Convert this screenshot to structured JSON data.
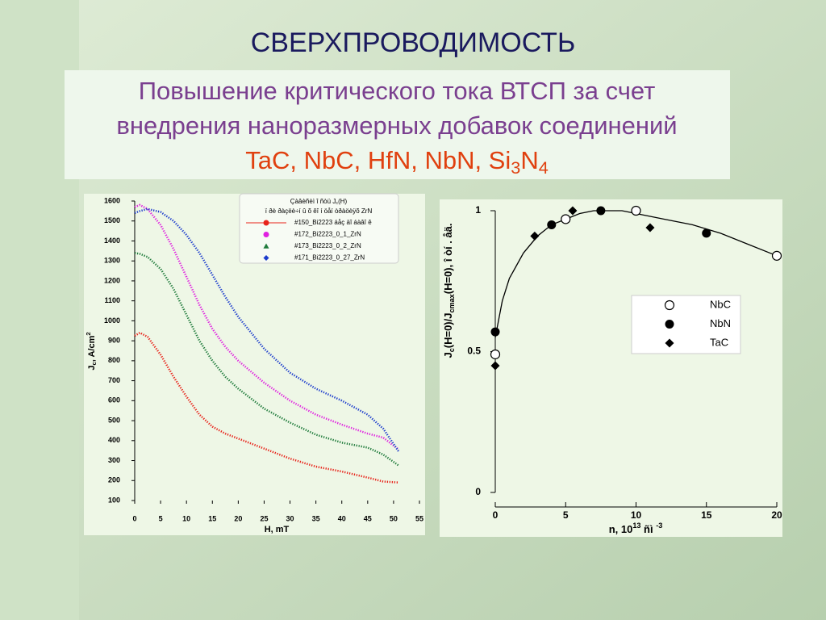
{
  "header": {
    "title": "СВЕРХПРОВОДИМОСТЬ",
    "lines": [
      "Повышение критического тока ВТСП за счет",
      "внедрения  наноразмерных добавок соединений"
    ],
    "formula": [
      "TaC, NbC, HfN, NbN, Si",
      "3",
      "N",
      "4"
    ]
  },
  "chart_data": [
    {
      "type": "line",
      "xlabel": "H, mT",
      "ylabel": [
        "J",
        "c",
        ", A/cm",
        "2"
      ],
      "legend_title": [
        "Çàâèñèì î ñòü J",
        "c",
        "(H)"
      ],
      "legend_subtitle": "ï ðè ðàçëè÷í û õ êî í öåí òðàöèÿõ ZrN",
      "x": [
        0,
        1,
        2.5,
        5,
        7.5,
        10,
        12.5,
        15,
        17.5,
        20,
        25,
        30,
        35,
        40,
        45,
        48,
        51
      ],
      "xlim": [
        0,
        55
      ],
      "xticks": [
        0,
        5,
        10,
        15,
        20,
        25,
        30,
        35,
        40,
        45,
        50,
        55
      ],
      "ylim": [
        100,
        1600
      ],
      "yticks": [
        100,
        200,
        300,
        400,
        500,
        600,
        700,
        800,
        900,
        1000,
        1100,
        1200,
        1300,
        1400,
        1500,
        1600
      ],
      "series": [
        {
          "name": "#150_Bi2223  áåç äî áàâî ê",
          "color": "#e8231a",
          "marker": "circle",
          "values": [
            925,
            940,
            920,
            830,
            720,
            620,
            530,
            470,
            435,
            410,
            360,
            310,
            270,
            245,
            215,
            195,
            190
          ]
        },
        {
          "name": "#172_Bi2223_0_1_ZrN",
          "color": "#e020e0",
          "marker": "circle",
          "values": [
            1570,
            1580,
            1560,
            1480,
            1360,
            1220,
            1080,
            960,
            870,
            800,
            690,
            600,
            530,
            480,
            435,
            415,
            355
          ]
        },
        {
          "name": "#173_Bi2223_0_2_ZrN",
          "color": "#1e7a3a",
          "marker": "triangle",
          "values": [
            1340,
            1335,
            1320,
            1260,
            1160,
            1030,
            900,
            800,
            720,
            660,
            560,
            490,
            430,
            390,
            365,
            330,
            275
          ]
        },
        {
          "name": "#171_Bi2223_0_27_ZrN",
          "color": "#1c3ccc",
          "marker": "diamond",
          "values": [
            1540,
            1550,
            1560,
            1545,
            1500,
            1430,
            1340,
            1230,
            1120,
            1020,
            860,
            740,
            660,
            600,
            530,
            460,
            345
          ]
        }
      ]
    },
    {
      "type": "scatter",
      "xlabel": [
        "n, 10",
        "13",
        " ñì ",
        "-3"
      ],
      "ylabel": [
        "J",
        "c",
        "(H=0)/J",
        "cmax",
        "(H=0), î òí . åä."
      ],
      "xlim": [
        0,
        20
      ],
      "xticks": [
        0,
        5,
        10,
        15,
        20
      ],
      "ylim": [
        0,
        1
      ],
      "yticks": [
        0,
        0.5,
        1
      ],
      "series": [
        {
          "name": "NbC",
          "color": "#000000",
          "marker": "open-circle",
          "x": [
            0,
            5,
            10,
            20
          ],
          "values": [
            0.49,
            0.97,
            1.0,
            0.84
          ]
        },
        {
          "name": "NbN",
          "color": "#000000",
          "marker": "circle",
          "x": [
            0,
            4,
            7.5,
            15
          ],
          "values": [
            0.57,
            0.95,
            1.0,
            0.92
          ]
        },
        {
          "name": "TaC",
          "color": "#000000",
          "marker": "diamond",
          "x": [
            0,
            2.8,
            5.5,
            11
          ],
          "values": [
            0.45,
            0.91,
            1.0,
            0.94
          ]
        }
      ],
      "fit": {
        "x": [
          0,
          0.5,
          1,
          2,
          3,
          4,
          5,
          6,
          7,
          8,
          9,
          10,
          12,
          14,
          16,
          18,
          20
        ],
        "y": [
          0.55,
          0.68,
          0.76,
          0.85,
          0.91,
          0.95,
          0.97,
          0.99,
          1.0,
          1.0,
          1.0,
          0.99,
          0.97,
          0.95,
          0.92,
          0.88,
          0.84
        ]
      }
    }
  ]
}
